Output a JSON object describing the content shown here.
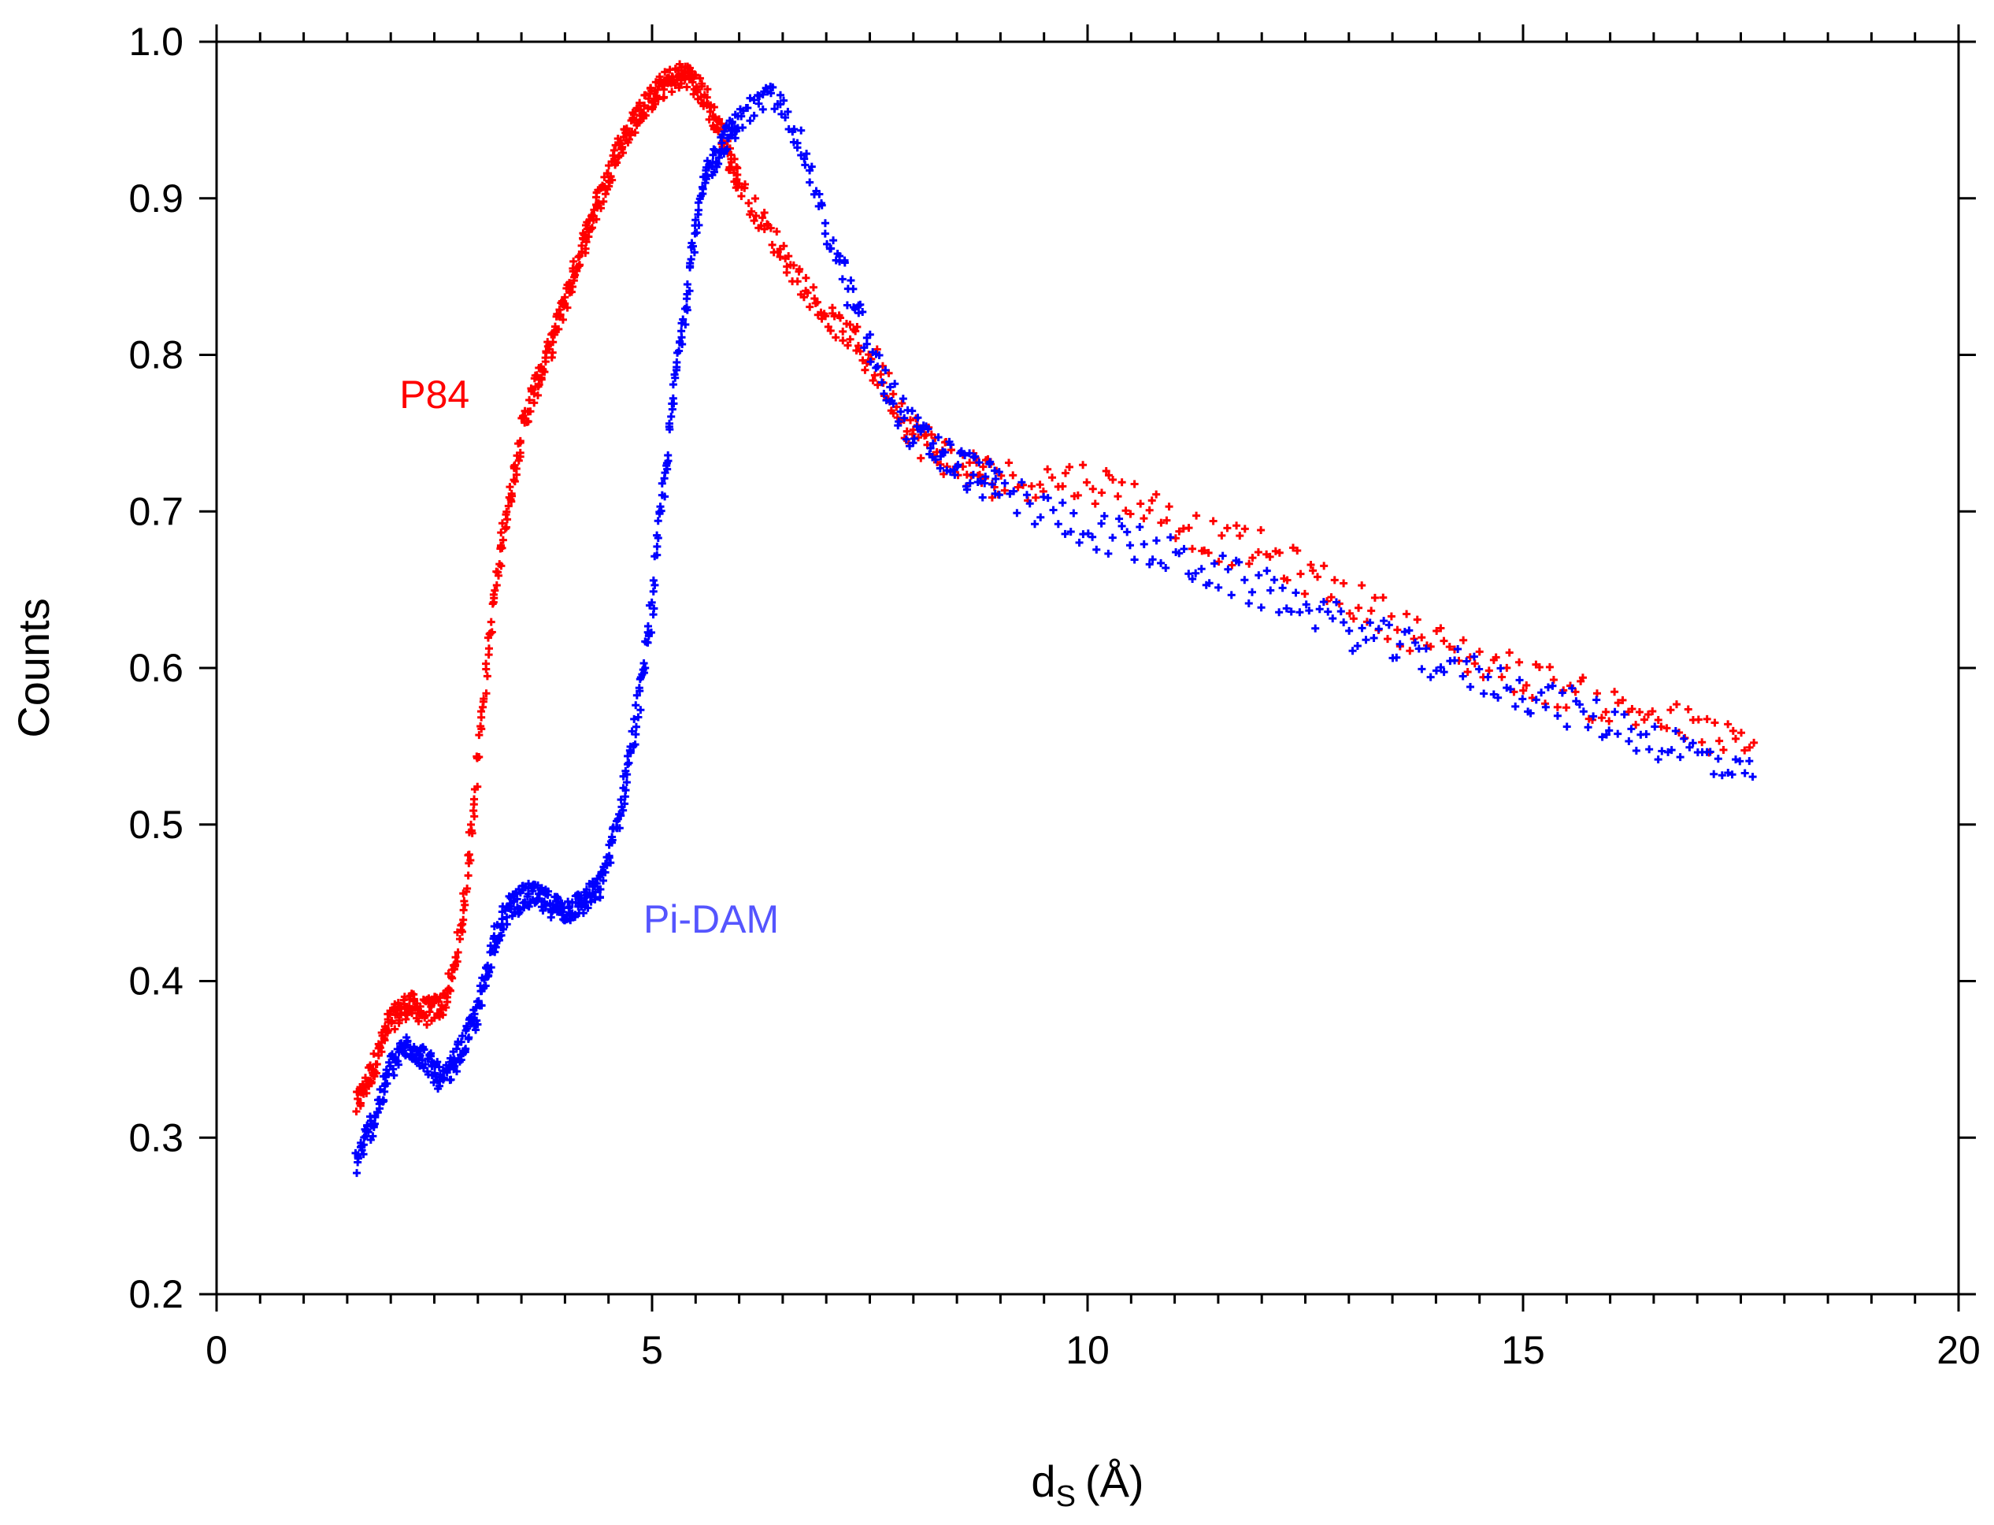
{
  "chart_data": {
    "type": "scatter",
    "title": "",
    "xlabel_main": "d",
    "xlabel_sub": "S",
    "xlabel_unit": "(Å)",
    "ylabel": "Counts",
    "xlim": [
      0,
      20
    ],
    "ylim": [
      0.2,
      1.0
    ],
    "x_ticks": [
      0,
      5,
      10,
      15,
      20
    ],
    "x_tick_labels": [
      "0",
      "5",
      "10",
      "15",
      "20"
    ],
    "x_minor_step": 0.5,
    "y_ticks": [
      0.2,
      0.3,
      0.4,
      0.5,
      0.6,
      0.7,
      0.8,
      0.9,
      1.0
    ],
    "y_tick_labels": [
      "0.2",
      "0.3",
      "0.4",
      "0.5",
      "0.6",
      "0.7",
      "0.8",
      "0.9",
      "1.0"
    ],
    "grid": false,
    "marker": "cross",
    "series": [
      {
        "name": "P84",
        "color": "#ff0000",
        "label_pos": {
          "x": 2.1,
          "y": 0.775
        },
        "x": [
          1.6,
          1.8,
          2.0,
          2.2,
          2.4,
          2.6,
          2.7,
          2.8,
          2.9,
          3.0,
          3.1,
          3.2,
          3.3,
          3.4,
          3.5,
          3.6,
          3.8,
          4.0,
          4.2,
          4.4,
          4.6,
          4.8,
          5.0,
          5.2,
          5.4,
          5.6,
          5.8,
          6.0,
          6.2,
          6.5,
          6.8,
          7.0,
          7.3,
          7.6,
          8.0,
          8.5,
          9.0,
          9.5,
          10.0,
          10.5,
          11.0,
          11.5,
          12.0,
          12.5,
          13.0,
          13.5,
          14.0,
          14.5,
          15.0,
          15.5,
          16.0,
          16.5,
          17.0,
          17.7
        ],
        "y": [
          0.32,
          0.345,
          0.375,
          0.385,
          0.38,
          0.385,
          0.4,
          0.43,
          0.48,
          0.54,
          0.6,
          0.65,
          0.69,
          0.72,
          0.75,
          0.77,
          0.8,
          0.835,
          0.87,
          0.9,
          0.93,
          0.95,
          0.965,
          0.975,
          0.98,
          0.965,
          0.94,
          0.91,
          0.89,
          0.865,
          0.84,
          0.825,
          0.81,
          0.79,
          0.75,
          0.73,
          0.72,
          0.72,
          0.72,
          0.71,
          0.695,
          0.68,
          0.675,
          0.66,
          0.645,
          0.63,
          0.615,
          0.605,
          0.595,
          0.585,
          0.575,
          0.57,
          0.56,
          0.545
        ],
        "spread": 0.006
      },
      {
        "name": "Pi-DAM",
        "color": "#0000ff",
        "label_pos": {
          "x": 4.9,
          "y": 0.44
        },
        "x": [
          1.6,
          1.8,
          2.0,
          2.2,
          2.4,
          2.6,
          2.8,
          3.0,
          3.2,
          3.4,
          3.6,
          3.8,
          4.0,
          4.2,
          4.4,
          4.6,
          4.7,
          4.8,
          4.9,
          5.0,
          5.1,
          5.2,
          5.3,
          5.4,
          5.5,
          5.6,
          5.8,
          6.0,
          6.2,
          6.4,
          6.6,
          6.8,
          7.0,
          7.2,
          7.4,
          7.6,
          7.8,
          8.0,
          8.5,
          9.0,
          9.5,
          10.0,
          10.5,
          11.0,
          11.5,
          12.0,
          12.5,
          13.0,
          13.5,
          14.0,
          14.5,
          15.0,
          15.5,
          16.0,
          16.5,
          17.0,
          17.7
        ],
        "y": [
          0.285,
          0.31,
          0.345,
          0.36,
          0.35,
          0.335,
          0.355,
          0.38,
          0.43,
          0.45,
          0.455,
          0.45,
          0.445,
          0.45,
          0.46,
          0.5,
          0.53,
          0.56,
          0.6,
          0.64,
          0.7,
          0.75,
          0.8,
          0.84,
          0.88,
          0.91,
          0.935,
          0.95,
          0.96,
          0.965,
          0.95,
          0.92,
          0.88,
          0.85,
          0.82,
          0.79,
          0.77,
          0.75,
          0.73,
          0.715,
          0.7,
          0.69,
          0.68,
          0.67,
          0.66,
          0.65,
          0.64,
          0.625,
          0.615,
          0.605,
          0.595,
          0.585,
          0.575,
          0.565,
          0.555,
          0.545,
          0.525
        ],
        "spread": 0.006
      }
    ]
  }
}
